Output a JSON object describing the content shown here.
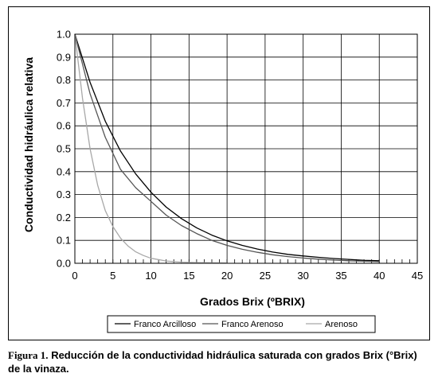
{
  "caption": {
    "label": "Figura 1.",
    "text": "Reducción de la conductividad hidráulica saturada con grados Brix (°Brix) de la vinaza."
  },
  "chart_data": {
    "type": "line",
    "title": "",
    "xlabel": "Grados Brix (ºBRIX)",
    "ylabel": "Conductividad hidráulica relativa",
    "xlim": [
      0,
      45
    ],
    "ylim": [
      0,
      1.0
    ],
    "x_ticks": [
      0,
      5,
      10,
      15,
      20,
      25,
      30,
      35,
      40,
      45
    ],
    "y_ticks": [
      0.0,
      0.1,
      0.2,
      0.3,
      0.4,
      0.5,
      0.6,
      0.7,
      0.8,
      0.9,
      1.0
    ],
    "x_tick_labels": [
      "0",
      "5",
      "10",
      "15",
      "20",
      "25",
      "30",
      "35",
      "40",
      "45"
    ],
    "y_tick_labels": [
      "0.0",
      "0.1",
      "0.2",
      "0.3",
      "0.4",
      "0.5",
      "0.6",
      "0.7",
      "0.8",
      "0.9",
      "1.0"
    ],
    "grid": true,
    "legend_position": "bottom",
    "series": [
      {
        "name": "Franco Arcilloso",
        "color": "#000000",
        "x": [
          0,
          2,
          4,
          6,
          8,
          10,
          12,
          14,
          16,
          18,
          20,
          22,
          24,
          26,
          28,
          30,
          32,
          34,
          36,
          38,
          40
        ],
        "y": [
          1.0,
          0.79,
          0.62,
          0.49,
          0.39,
          0.31,
          0.245,
          0.195,
          0.155,
          0.123,
          0.098,
          0.078,
          0.062,
          0.049,
          0.039,
          0.032,
          0.026,
          0.021,
          0.017,
          0.013,
          0.011
        ]
      },
      {
        "name": "Franco Arenoso",
        "color": "#555555",
        "x": [
          0,
          2,
          4,
          6,
          8,
          10,
          12,
          14,
          16,
          18,
          20,
          22,
          24,
          26,
          28,
          30,
          32,
          34,
          36,
          38,
          40
        ],
        "y": [
          1.0,
          0.74,
          0.55,
          0.41,
          0.33,
          0.27,
          0.21,
          0.165,
          0.13,
          0.1,
          0.078,
          0.061,
          0.048,
          0.037,
          0.029,
          0.023,
          0.018,
          0.014,
          0.011,
          0.009,
          0.007
        ]
      },
      {
        "name": "Arenoso",
        "color": "#a8a8a8",
        "x": [
          0,
          1,
          2,
          3,
          4,
          5,
          6,
          7,
          8,
          9,
          10,
          12,
          14,
          16,
          18,
          20
        ],
        "y": [
          1.0,
          0.72,
          0.5,
          0.34,
          0.23,
          0.16,
          0.11,
          0.075,
          0.05,
          0.034,
          0.022,
          0.01,
          0.005,
          0.003,
          0.002,
          0.001
        ]
      }
    ]
  }
}
